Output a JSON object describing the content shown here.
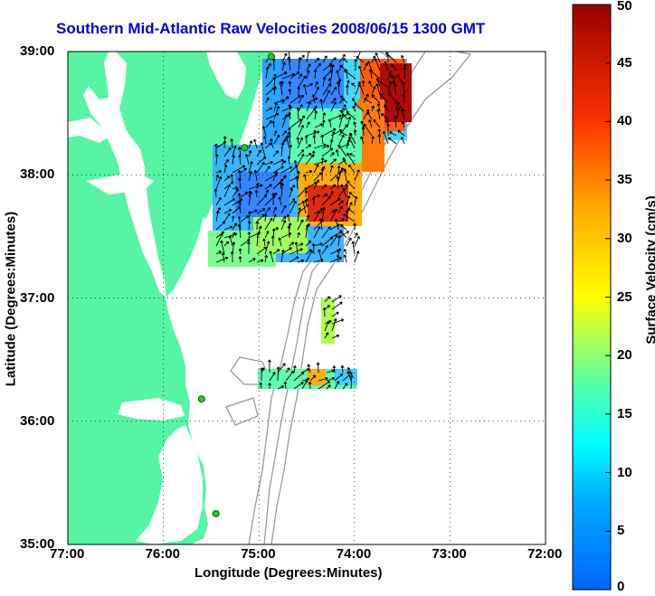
{
  "map": {
    "title": "Southern Mid-Atlantic Raw Velocities 2008/06/15 1300 GMT",
    "xlabel": "Longitude (Degrees:Minutes)",
    "ylabel": "Latitude (Degrees:Minutes)",
    "x_ticks": [
      "77:00",
      "76:00",
      "75:00",
      "74:00",
      "73:00",
      "72:00"
    ],
    "y_ticks": [
      "39:00",
      "38:00",
      "37:00",
      "36:00",
      "35:00"
    ],
    "lon_range": [
      -77,
      -72
    ],
    "lat_range": [
      35,
      39
    ],
    "grid": true,
    "colors": {
      "land": "#55f5a5",
      "ocean": "#ffffff",
      "title": "#0000ee",
      "bathymetry": "#999999",
      "station_marker": "#22cc22"
    }
  },
  "colorbar": {
    "label": "Surface Velocity (cm/s)",
    "ticks": [
      "50",
      "45",
      "40",
      "35",
      "30",
      "25",
      "20",
      "15",
      "10",
      "5",
      "0"
    ],
    "range": [
      0,
      50
    ],
    "colormap": "jet"
  },
  "stations": [
    {
      "lon": -74.87,
      "lat": 38.96
    },
    {
      "lon": -75.15,
      "lat": 38.22
    },
    {
      "lon": -75.6,
      "lat": 36.18
    },
    {
      "lon": -75.45,
      "lat": 35.25
    }
  ]
}
